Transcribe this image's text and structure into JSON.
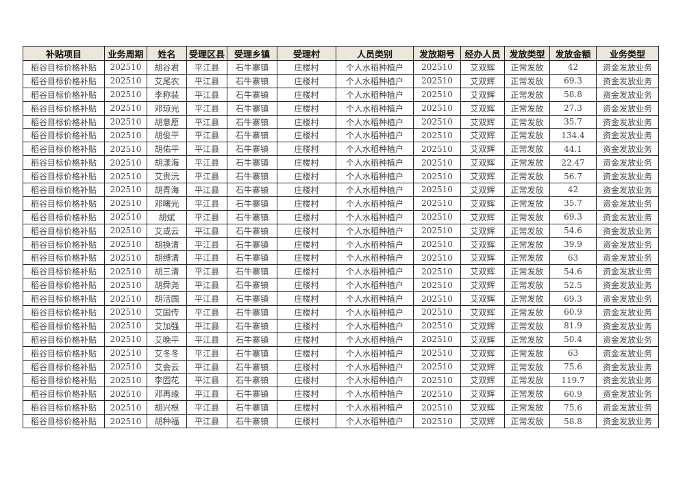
{
  "table": {
    "headers": [
      "补贴项目",
      "业务周期",
      "姓名",
      "受理区县",
      "受理乡镇",
      "受理村",
      "人员类别",
      "发放期号",
      "经办人员",
      "发放类型",
      "发放金额",
      "业务类型"
    ],
    "rows": [
      [
        "稻谷目标价格补贴",
        "202510",
        "胡谷君",
        "平江县",
        "石牛寨镇",
        "庄楼村",
        "个人水稻种植户",
        "202510",
        "艾双辉",
        "正常发放",
        "42",
        "资金发放业务"
      ],
      [
        "稻谷目标价格补贴",
        "202510",
        "艾尾农",
        "平江县",
        "石牛寨镇",
        "庄楼村",
        "个人水稻种植户",
        "202510",
        "艾双辉",
        "正常发放",
        "69.3",
        "资金发放业务"
      ],
      [
        "稻谷目标价格补贴",
        "202510",
        "李称装",
        "平江县",
        "石牛寨镇",
        "庄楼村",
        "个人水稻种植户",
        "202510",
        "艾双辉",
        "正常发放",
        "58.8",
        "资金发放业务"
      ],
      [
        "稻谷目标价格补贴",
        "202510",
        "邓琼光",
        "平江县",
        "石牛寨镇",
        "庄楼村",
        "个人水稻种植户",
        "202510",
        "艾双辉",
        "正常发放",
        "27.3",
        "资金发放业务"
      ],
      [
        "稻谷目标价格补贴",
        "202510",
        "胡意愿",
        "平江县",
        "石牛寨镇",
        "庄楼村",
        "个人水稻种植户",
        "202510",
        "艾双辉",
        "正常发放",
        "35.7",
        "资金发放业务"
      ],
      [
        "稻谷目标价格补贴",
        "202510",
        "胡俊平",
        "平江县",
        "石牛寨镇",
        "庄楼村",
        "个人水稻种植户",
        "202510",
        "艾双辉",
        "正常发放",
        "134.4",
        "资金发放业务"
      ],
      [
        "稻谷目标价格补贴",
        "202510",
        "胡佑平",
        "平江县",
        "石牛寨镇",
        "庄楼村",
        "个人水稻种植户",
        "202510",
        "艾双辉",
        "正常发放",
        "44.1",
        "资金发放业务"
      ],
      [
        "稻谷目标价格补贴",
        "202510",
        "胡漾海",
        "平江县",
        "石牛寨镇",
        "庄楼村",
        "个人水稻种植户",
        "202510",
        "艾双辉",
        "正常发放",
        "22.47",
        "资金发放业务"
      ],
      [
        "稻谷目标价格补贴",
        "202510",
        "艾贵沅",
        "平江县",
        "石牛寨镇",
        "庄楼村",
        "个人水稻种植户",
        "202510",
        "艾双辉",
        "正常发放",
        "56.7",
        "资金发放业务"
      ],
      [
        "稻谷目标价格补贴",
        "202510",
        "胡青海",
        "平江县",
        "石牛寨镇",
        "庄楼村",
        "个人水稻种植户",
        "202510",
        "艾双辉",
        "正常发放",
        "42",
        "资金发放业务"
      ],
      [
        "稻谷目标价格补贴",
        "202510",
        "邓曙光",
        "平江县",
        "石牛寨镇",
        "庄楼村",
        "个人水稻种植户",
        "202510",
        "艾双辉",
        "正常发放",
        "35.7",
        "资金发放业务"
      ],
      [
        "稻谷目标价格补贴",
        "202510",
        "胡斌",
        "平江县",
        "石牛寨镇",
        "庄楼村",
        "个人水稻种植户",
        "202510",
        "艾双辉",
        "正常发放",
        "69.3",
        "资金发放业务"
      ],
      [
        "稻谷目标价格补贴",
        "202510",
        "艾或云",
        "平江县",
        "石牛寨镇",
        "庄楼村",
        "个人水稻种植户",
        "202510",
        "艾双辉",
        "正常发放",
        "54.6",
        "资金发放业务"
      ],
      [
        "稻谷目标价格补贴",
        "202510",
        "胡换清",
        "平江县",
        "石牛寨镇",
        "庄楼村",
        "个人水稻种植户",
        "202510",
        "艾双辉",
        "正常发放",
        "39.9",
        "资金发放业务"
      ],
      [
        "稻谷目标价格补贴",
        "202510",
        "胡缚清",
        "平江县",
        "石牛寨镇",
        "庄楼村",
        "个人水稻种植户",
        "202510",
        "艾双辉",
        "正常发放",
        "63",
        "资金发放业务"
      ],
      [
        "稻谷目标价格补贴",
        "202510",
        "胡三清",
        "平江县",
        "石牛寨镇",
        "庄楼村",
        "个人水稻种植户",
        "202510",
        "艾双辉",
        "正常发放",
        "54.6",
        "资金发放业务"
      ],
      [
        "稻谷目标价格补贴",
        "202510",
        "胡舜尧",
        "平江县",
        "石牛寨镇",
        "庄楼村",
        "个人水稻种植户",
        "202510",
        "艾双辉",
        "正常发放",
        "52.5",
        "资金发放业务"
      ],
      [
        "稻谷目标价格补贴",
        "202510",
        "胡活国",
        "平江县",
        "石牛寨镇",
        "庄楼村",
        "个人水稻种植户",
        "202510",
        "艾双辉",
        "正常发放",
        "69.3",
        "资金发放业务"
      ],
      [
        "稻谷目标价格补贴",
        "202510",
        "艾国传",
        "平江县",
        "石牛寨镇",
        "庄楼村",
        "个人水稻种植户",
        "202510",
        "艾双辉",
        "正常发放",
        "60.9",
        "资金发放业务"
      ],
      [
        "稻谷目标价格补贴",
        "202510",
        "艾加强",
        "平江县",
        "石牛寨镇",
        "庄楼村",
        "个人水稻种植户",
        "202510",
        "艾双辉",
        "正常发放",
        "81.9",
        "资金发放业务"
      ],
      [
        "稻谷目标价格补贴",
        "202510",
        "艾晚平",
        "平江县",
        "石牛寨镇",
        "庄楼村",
        "个人水稻种植户",
        "202510",
        "艾双辉",
        "正常发放",
        "50.4",
        "资金发放业务"
      ],
      [
        "稻谷目标价格补贴",
        "202510",
        "艾冬冬",
        "平江县",
        "石牛寨镇",
        "庄楼村",
        "个人水稻种植户",
        "202510",
        "艾双辉",
        "正常发放",
        "63",
        "资金发放业务"
      ],
      [
        "稻谷目标价格补贴",
        "202510",
        "艾会云",
        "平江县",
        "石牛寨镇",
        "庄楼村",
        "个人水稻种植户",
        "202510",
        "艾双辉",
        "正常发放",
        "75.6",
        "资金发放业务"
      ],
      [
        "稻谷目标价格补贴",
        "202510",
        "李固花",
        "平江县",
        "石牛寨镇",
        "庄楼村",
        "个人水稻种植户",
        "202510",
        "艾双辉",
        "正常发放",
        "119.7",
        "资金发放业务"
      ],
      [
        "稻谷目标价格补贴",
        "202510",
        "邓再缘",
        "平江县",
        "石牛寨镇",
        "庄楼村",
        "个人水稻种植户",
        "202510",
        "艾双辉",
        "正常发放",
        "60.9",
        "资金发放业务"
      ],
      [
        "稻谷目标价格补贴",
        "202510",
        "胡兴根",
        "平江县",
        "石牛寨镇",
        "庄楼村",
        "个人水稻种植户",
        "202510",
        "艾双辉",
        "正常发放",
        "75.6",
        "资金发放业务"
      ],
      [
        "稻谷目标价格补贴",
        "202510",
        "胡种福",
        "平江县",
        "石牛寨镇",
        "庄楼村",
        "个人水稻种植户",
        "202510",
        "艾双辉",
        "正常发放",
        "58.8",
        "资金发放业务"
      ]
    ]
  }
}
